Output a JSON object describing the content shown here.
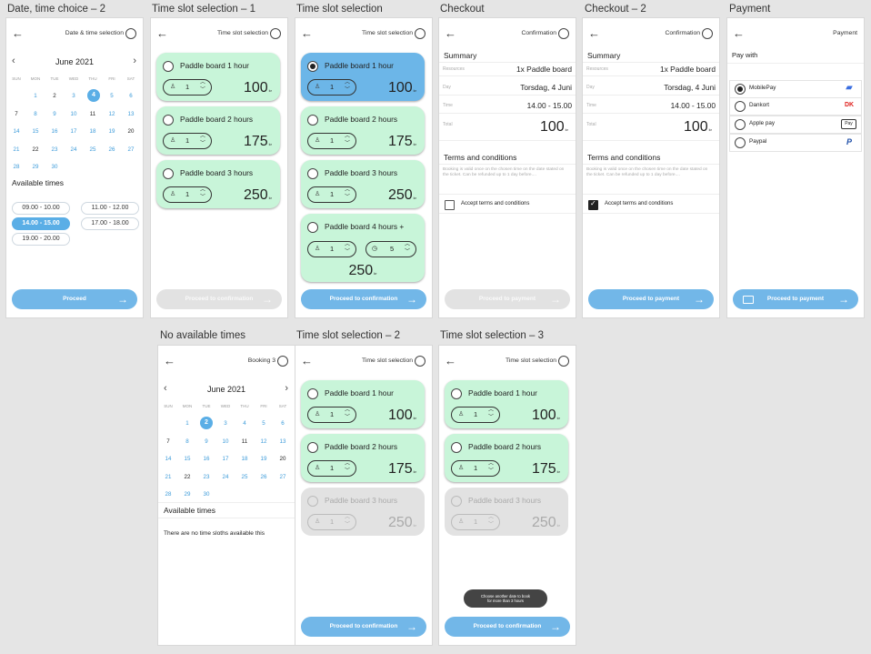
{
  "frame_titles": [
    "Date, time choice – 2",
    "Time slot selection – 1",
    "Time slot selection",
    "Checkout",
    "Checkout – 2",
    "Payment",
    "No available times",
    "Time slot selection – 2",
    "Time slot selection – 3"
  ],
  "headers": {
    "datetime": "Date & time selection",
    "timeslot": "Time slot selection",
    "confirmation": "Confirmation",
    "payment": "Payment",
    "booking": "Booking 3"
  },
  "calendar": {
    "month": "June 2021",
    "weekdays": [
      "SUN",
      "MON",
      "TUE",
      "WED",
      "THU",
      "FRI",
      "SAT"
    ],
    "rows": [
      [
        "",
        "1",
        "2",
        "3",
        "4",
        "5",
        "6"
      ],
      [
        "7",
        "8",
        "9",
        "10",
        "11",
        "12",
        "13"
      ],
      [
        "14",
        "15",
        "16",
        "17",
        "18",
        "19",
        "20"
      ],
      [
        "21",
        "22",
        "23",
        "24",
        "25",
        "26",
        "27"
      ],
      [
        "28",
        "29",
        "30",
        "",
        "",
        "",
        ""
      ]
    ]
  },
  "available_times_label": "Available times",
  "times": [
    "09.00 - 10.00",
    "11.00 - 12.00",
    "14.00 - 15.00",
    "17.00 - 18.00",
    "19.00 - 20.00"
  ],
  "no_times_text": "There are no time sloths available this",
  "options": [
    {
      "label": "Paddle board 1 hour",
      "qty": "1",
      "price": "100"
    },
    {
      "label": "Paddle board 2 hours",
      "qty": "1",
      "price": "175"
    },
    {
      "label": "Paddle board 3 hours",
      "qty": "1",
      "price": "250"
    },
    {
      "label": "Paddle board 4 hours +",
      "qty": "1",
      "hours": "5",
      "price": "250"
    }
  ],
  "currency_suffix": "kr",
  "buttons": {
    "proceed": "Proceed",
    "to_confirmation": "Proceed to confirmation",
    "to_payment": "Proceed to payment"
  },
  "checkout": {
    "summary_label": "Summary",
    "rows": [
      {
        "label": "Resources",
        "value": "1x Paddle board"
      },
      {
        "label": "Day",
        "value": "Torsdag, 4 Juni"
      },
      {
        "label": "Time",
        "value": "14.00 - 15.00"
      },
      {
        "label": "Total",
        "value": "100"
      }
    ],
    "terms_title": "Terms and conditions",
    "terms_text": "Booking is valid once on the chosen time on the date stated on the ticket. Can be refunded up to 1 day before....",
    "accept_label": "Accept terms and conditions"
  },
  "payment": {
    "pay_with": "Pay with",
    "methods": [
      "MobilePay",
      "Dankort",
      "Apple pay",
      "Paypal"
    ]
  },
  "toast": {
    "line1": "Choose another date to book",
    "line2": "for more than 3 hours"
  },
  "colors": {
    "green": "#c8f5d9",
    "blue": "#6cb6e8",
    "button": "#72b7e8",
    "disabled": "#e2e2e2"
  }
}
